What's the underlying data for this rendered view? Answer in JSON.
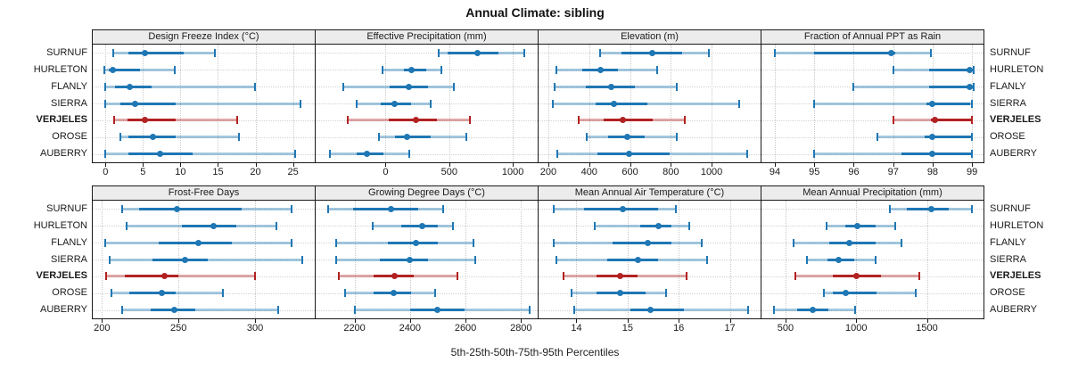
{
  "title": "Annual Climate: sibling",
  "caption": "5th-25th-50th-75th-95th Percentiles",
  "sites": [
    "SURNUF",
    "HURLETON",
    "FLANLY",
    "SIERRA",
    "VERJELES",
    "OROSE",
    "AUBERRY"
  ],
  "highlight_site": "VERJELES",
  "colors": {
    "normal": "#1f77b4",
    "normal_light": "rgba(31,119,180,0.40)",
    "highlight": "#b22222",
    "highlight_light": "rgba(178,34,34,0.40)",
    "strip_bg": "#ececec",
    "panel_border": "#1a1a1a",
    "gridline": "#c9c9c9"
  },
  "percentile_levels": [
    5,
    25,
    50,
    75,
    95
  ],
  "chart_data": [
    {
      "type": "percentile-dotplot",
      "row": 0,
      "col": 0,
      "title": "Design Freeze Index (°C)",
      "domain": [
        -1.7,
        27.9
      ],
      "ticks": [
        0,
        5,
        10,
        15,
        20,
        25
      ],
      "series": [
        {
          "site": "SURNUF",
          "p": [
            1.0,
            3.0,
            5.2,
            10.4,
            14.6
          ]
        },
        {
          "site": "HURLETON",
          "p": [
            -0.2,
            0.4,
            1.0,
            4.6,
            9.2
          ]
        },
        {
          "site": "FLANLY",
          "p": [
            0.0,
            1.3,
            3.2,
            6.2,
            19.9
          ]
        },
        {
          "site": "SIERRA",
          "p": [
            0.0,
            2.0,
            4.0,
            9.3,
            26.0
          ]
        },
        {
          "site": "VERJELES",
          "p": [
            1.2,
            2.9,
            5.2,
            9.3,
            17.6
          ]
        },
        {
          "site": "OROSE",
          "p": [
            2.0,
            3.0,
            6.3,
            9.3,
            17.8
          ]
        },
        {
          "site": "AUBERRY",
          "p": [
            0.0,
            3.0,
            7.3,
            11.6,
            25.3
          ]
        }
      ]
    },
    {
      "type": "percentile-dotplot",
      "row": 0,
      "col": 1,
      "title": "Effective Precipitation (mm)",
      "domain": [
        -550,
        1195
      ],
      "ticks": [
        0,
        500,
        1000
      ],
      "series": [
        {
          "site": "SURNUF",
          "p": [
            420,
            485,
            720,
            890,
            1090
          ]
        },
        {
          "site": "HURLETON",
          "p": [
            -25,
            145,
            200,
            320,
            440
          ]
        },
        {
          "site": "FLANLY",
          "p": [
            -330,
            35,
            180,
            335,
            535
          ]
        },
        {
          "site": "SIERRA",
          "p": [
            -225,
            -40,
            70,
            200,
            355
          ]
        },
        {
          "site": "VERJELES",
          "p": [
            -295,
            25,
            240,
            400,
            665
          ]
        },
        {
          "site": "OROSE",
          "p": [
            -50,
            75,
            165,
            355,
            635
          ]
        },
        {
          "site": "AUBERRY",
          "p": [
            -440,
            -225,
            -145,
            -15,
            185
          ]
        }
      ]
    },
    {
      "type": "percentile-dotplot",
      "row": 0,
      "col": 2,
      "title": "Elevation (m)",
      "domain": [
        152,
        1240
      ],
      "ticks": [
        200,
        400,
        600,
        800,
        1000
      ],
      "series": [
        {
          "site": "SURNUF",
          "p": [
            455,
            560,
            710,
            855,
            985
          ]
        },
        {
          "site": "HURLETON",
          "p": [
            240,
            365,
            455,
            540,
            735
          ]
        },
        {
          "site": "FLANLY",
          "p": [
            230,
            385,
            510,
            625,
            830
          ]
        },
        {
          "site": "SIERRA",
          "p": [
            220,
            430,
            520,
            685,
            1135
          ]
        },
        {
          "site": "VERJELES",
          "p": [
            350,
            470,
            565,
            710,
            870
          ]
        },
        {
          "site": "OROSE",
          "p": [
            390,
            495,
            585,
            670,
            830
          ]
        },
        {
          "site": "AUBERRY",
          "p": [
            245,
            440,
            595,
            795,
            1175
          ]
        }
      ]
    },
    {
      "type": "percentile-dotplot",
      "row": 0,
      "col": 3,
      "title": "Fraction of Annual PPT as Rain",
      "domain": [
        93.66,
        99.29
      ],
      "ticks": [
        94,
        95,
        96,
        97,
        98,
        99
      ],
      "series": [
        {
          "site": "SURNUF",
          "p": [
            94.0,
            95.0,
            96.95,
            97.05,
            97.95
          ]
        },
        {
          "site": "HURLETON",
          "p": [
            97.0,
            97.9,
            98.95,
            99.05,
            99.05
          ]
        },
        {
          "site": "FLANLY",
          "p": [
            96.0,
            97.9,
            98.95,
            99.05,
            99.05
          ]
        },
        {
          "site": "SIERRA",
          "p": [
            95.0,
            97.85,
            98.0,
            98.95,
            99.0
          ]
        },
        {
          "site": "VERJELES",
          "p": [
            97.0,
            97.95,
            98.05,
            99.0,
            99.0
          ]
        },
        {
          "site": "OROSE",
          "p": [
            96.6,
            97.8,
            98.0,
            99.0,
            99.0
          ]
        },
        {
          "site": "AUBERRY",
          "p": [
            95.0,
            97.2,
            98.0,
            99.0,
            99.0
          ]
        }
      ]
    },
    {
      "type": "percentile-dotplot",
      "row": 1,
      "col": 0,
      "title": "Frost-Free Days",
      "domain": [
        194,
        339
      ],
      "ticks": [
        200,
        250,
        300
      ],
      "series": [
        {
          "site": "SURNUF",
          "p": [
            213,
            224,
            249,
            291,
            324
          ]
        },
        {
          "site": "HURLETON",
          "p": [
            216,
            252,
            273,
            288,
            314
          ]
        },
        {
          "site": "FLANLY",
          "p": [
            202,
            237,
            263,
            285,
            324
          ]
        },
        {
          "site": "SIERRA",
          "p": [
            205,
            233,
            254,
            269,
            331
          ]
        },
        {
          "site": "VERJELES",
          "p": [
            203,
            215,
            241,
            250,
            300
          ]
        },
        {
          "site": "OROSE",
          "p": [
            206,
            218,
            239,
            248,
            279
          ]
        },
        {
          "site": "AUBERRY",
          "p": [
            213,
            232,
            247,
            261,
            315
          ]
        }
      ]
    },
    {
      "type": "percentile-dotplot",
      "row": 1,
      "col": 1,
      "title": "Growing Degree Days (°C)",
      "domain": [
        2060,
        2860
      ],
      "ticks": [
        2200,
        2400,
        2600,
        2800
      ],
      "series": [
        {
          "site": "SURNUF",
          "p": [
            2105,
            2195,
            2330,
            2430,
            2520
          ]
        },
        {
          "site": "HURLETON",
          "p": [
            2265,
            2370,
            2445,
            2500,
            2555
          ]
        },
        {
          "site": "FLANLY",
          "p": [
            2135,
            2320,
            2420,
            2500,
            2630
          ]
        },
        {
          "site": "SIERRA",
          "p": [
            2135,
            2290,
            2400,
            2465,
            2635
          ]
        },
        {
          "site": "VERJELES",
          "p": [
            2145,
            2270,
            2345,
            2415,
            2570
          ]
        },
        {
          "site": "OROSE",
          "p": [
            2165,
            2270,
            2340,
            2405,
            2490
          ]
        },
        {
          "site": "AUBERRY",
          "p": [
            2200,
            2400,
            2500,
            2595,
            2830
          ]
        }
      ]
    },
    {
      "type": "percentile-dotplot",
      "row": 1,
      "col": 2,
      "title": "Mean Annual Air Temperature (°C)",
      "domain": [
        13.26,
        17.6
      ],
      "ticks": [
        14,
        15,
        16,
        17
      ],
      "series": [
        {
          "site": "SURNUF",
          "p": [
            13.55,
            14.15,
            14.9,
            15.6,
            15.95
          ]
        },
        {
          "site": "HURLETON",
          "p": [
            14.35,
            15.25,
            15.6,
            15.85,
            16.2
          ]
        },
        {
          "site": "FLANLY",
          "p": [
            13.55,
            14.7,
            15.4,
            15.85,
            16.45
          ]
        },
        {
          "site": "SIERRA",
          "p": [
            13.6,
            14.6,
            15.2,
            15.6,
            16.55
          ]
        },
        {
          "site": "VERJELES",
          "p": [
            13.75,
            14.4,
            14.85,
            15.2,
            16.15
          ]
        },
        {
          "site": "OROSE",
          "p": [
            13.9,
            14.4,
            14.85,
            15.35,
            15.75
          ]
        },
        {
          "site": "AUBERRY",
          "p": [
            13.95,
            15.05,
            15.45,
            16.1,
            17.35
          ]
        }
      ]
    },
    {
      "type": "percentile-dotplot",
      "row": 1,
      "col": 3,
      "title": "Mean Annual Precipitation (mm)",
      "domain": [
        330,
        1900
      ],
      "ticks": [
        500,
        1000,
        1500
      ],
      "series": [
        {
          "site": "SURNUF",
          "p": [
            1240,
            1360,
            1530,
            1655,
            1815
          ]
        },
        {
          "site": "HURLETON",
          "p": [
            790,
            925,
            1010,
            1140,
            1275
          ]
        },
        {
          "site": "FLANLY",
          "p": [
            560,
            810,
            950,
            1135,
            1320
          ]
        },
        {
          "site": "SIERRA",
          "p": [
            650,
            795,
            875,
            985,
            1135
          ]
        },
        {
          "site": "VERJELES",
          "p": [
            570,
            835,
            1000,
            1175,
            1445
          ]
        },
        {
          "site": "OROSE",
          "p": [
            770,
            835,
            925,
            1145,
            1420
          ]
        },
        {
          "site": "AUBERRY",
          "p": [
            420,
            580,
            690,
            805,
            990
          ]
        }
      ]
    }
  ]
}
